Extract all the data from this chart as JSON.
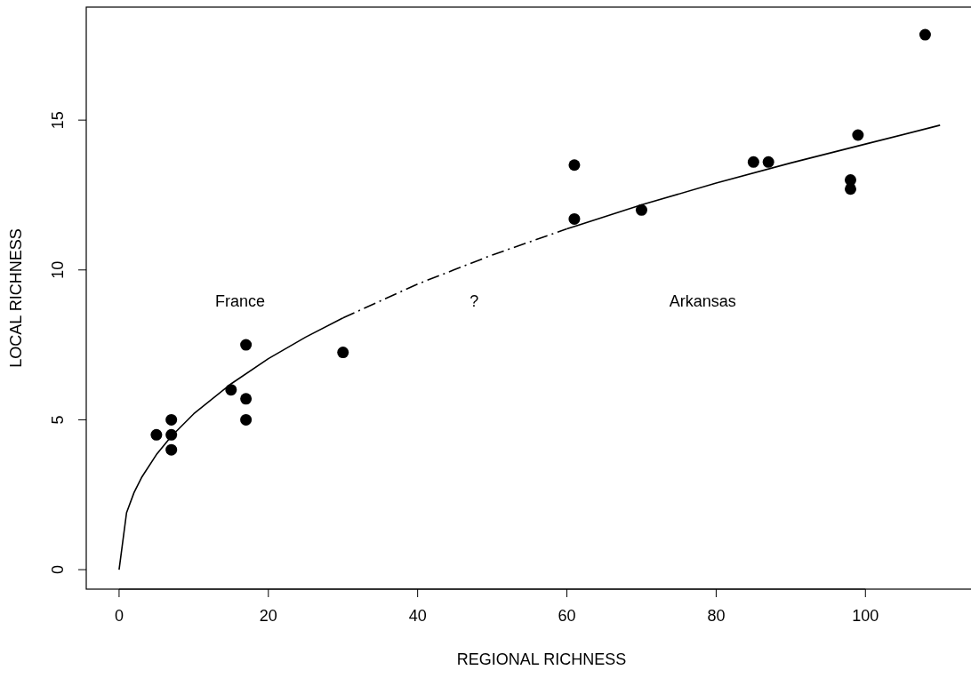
{
  "chart_data": {
    "type": "scatter",
    "xlabel": "REGIONAL RICHNESS",
    "ylabel": "LOCAL RICHNESS",
    "xlim": [
      -4.4,
      117.6
    ],
    "ylim": [
      -0.65,
      18.77
    ],
    "xticks": [
      0,
      20,
      40,
      60,
      80,
      100
    ],
    "yticks": [
      0,
      5,
      10,
      15
    ],
    "grid": false,
    "marker": "circle",
    "series": [
      {
        "color": "#000000",
        "x": [
          5,
          7,
          7,
          7,
          15,
          17,
          17,
          17,
          30,
          61,
          61,
          70,
          85,
          87,
          98,
          98,
          99,
          108
        ],
        "values": [
          4.5,
          5,
          4.5,
          4,
          6,
          7.5,
          5.7,
          5,
          7.25,
          13.5,
          11.7,
          12,
          13.6,
          13.6,
          13,
          12.7,
          14.5,
          17.85
        ]
      },
      {
        "type": "line",
        "color": "#000000",
        "line_style": "solid",
        "marker": "none",
        "x": [
          0,
          1,
          2,
          3,
          5,
          7,
          10,
          15,
          20,
          25,
          30
        ],
        "values": [
          0,
          1.9,
          2.57,
          3.07,
          3.84,
          4.45,
          5.2,
          6.2,
          7.04,
          7.76,
          8.4
        ]
      },
      {
        "type": "line",
        "color": "#000000",
        "line_style": "dashed",
        "marker": "none",
        "x": [
          30,
          40,
          50,
          60
        ],
        "values": [
          8.4,
          9.53,
          10.5,
          11.37
        ]
      },
      {
        "type": "line",
        "color": "#000000",
        "line_style": "solid",
        "marker": "none",
        "x": [
          60,
          70,
          80,
          90,
          100,
          110
        ],
        "values": [
          11.37,
          12.17,
          12.9,
          13.57,
          14.2,
          14.83
        ]
      }
    ],
    "annotations": [
      "France",
      "?",
      "Arkansas"
    ]
  }
}
